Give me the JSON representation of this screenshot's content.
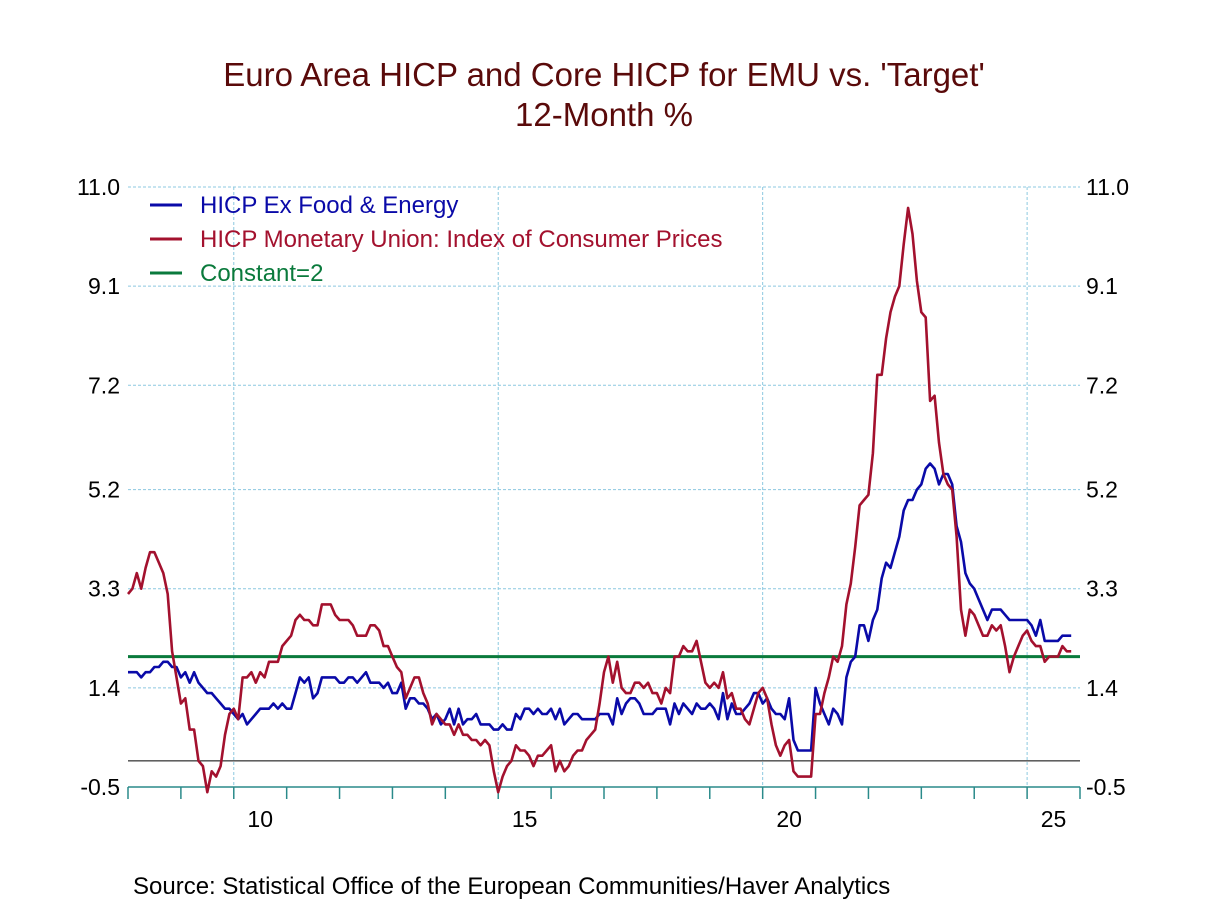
{
  "chart_data": {
    "type": "line",
    "title": "Euro Area HICP and Core HICP for EMU vs. 'Target'",
    "subtitle": "12-Month %",
    "source": "Source:  Statistical Office of the European Communities/Haver Analytics",
    "xlabel": "",
    "ylabel": "",
    "x_start": "2008-01",
    "frequency": "monthly",
    "xlim": [
      2008,
      2026
    ],
    "x_tick_labels": [
      "10",
      "15",
      "20",
      "25"
    ],
    "x_tick_years": [
      2010,
      2015,
      2020,
      2025
    ],
    "ylim": [
      -0.5,
      11.0
    ],
    "y_ticks": [
      11.0,
      9.1,
      7.2,
      5.2,
      3.3,
      1.4,
      -0.5
    ],
    "y_tick_labels": [
      "11.0",
      "9.1",
      "7.2",
      "5.2",
      "3.3",
      "1.4",
      "-0.5"
    ],
    "grid": true,
    "zero_line": true,
    "legend_position": "top-left",
    "series": [
      {
        "name": "HICP Ex Food & Energy",
        "color": "#0a0aa8",
        "values": [
          1.7,
          1.7,
          1.7,
          1.6,
          1.7,
          1.7,
          1.8,
          1.8,
          1.9,
          1.9,
          1.8,
          1.8,
          1.6,
          1.7,
          1.5,
          1.7,
          1.5,
          1.4,
          1.3,
          1.3,
          1.2,
          1.1,
          1.0,
          1.0,
          0.9,
          0.8,
          0.9,
          0.7,
          0.8,
          0.9,
          1.0,
          1.0,
          1.0,
          1.1,
          1.0,
          1.1,
          1.0,
          1.0,
          1.3,
          1.6,
          1.5,
          1.6,
          1.2,
          1.3,
          1.6,
          1.6,
          1.6,
          1.6,
          1.5,
          1.5,
          1.6,
          1.6,
          1.5,
          1.6,
          1.7,
          1.5,
          1.5,
          1.5,
          1.4,
          1.5,
          1.3,
          1.3,
          1.5,
          1.0,
          1.2,
          1.2,
          1.1,
          1.1,
          1.0,
          0.8,
          0.9,
          0.7,
          0.8,
          1.0,
          0.7,
          1.0,
          0.7,
          0.8,
          0.8,
          0.9,
          0.7,
          0.7,
          0.7,
          0.6,
          0.6,
          0.7,
          0.6,
          0.6,
          0.9,
          0.8,
          1.0,
          1.0,
          0.9,
          1.0,
          0.9,
          0.9,
          1.0,
          0.8,
          1.0,
          0.7,
          0.8,
          0.9,
          0.9,
          0.8,
          0.8,
          0.8,
          0.8,
          0.9,
          0.9,
          0.9,
          0.7,
          1.2,
          0.9,
          1.1,
          1.2,
          1.2,
          1.1,
          0.9,
          0.9,
          0.9,
          1.0,
          1.0,
          1.0,
          0.7,
          1.1,
          0.9,
          1.1,
          1.0,
          0.9,
          1.1,
          1.0,
          1.0,
          1.1,
          1.0,
          0.8,
          1.3,
          0.8,
          1.1,
          0.9,
          0.9,
          1.0,
          1.1,
          1.3,
          1.3,
          1.1,
          1.2,
          1.0,
          0.9,
          0.9,
          0.8,
          1.2,
          0.4,
          0.2,
          0.2,
          0.2,
          0.2,
          1.4,
          1.1,
          0.9,
          0.7,
          1.0,
          0.9,
          0.7,
          1.6,
          1.9,
          2.0,
          2.6,
          2.6,
          2.3,
          2.7,
          2.9,
          3.5,
          3.8,
          3.7,
          4.0,
          4.3,
          4.8,
          5.0,
          5.0,
          5.2,
          5.3,
          5.6,
          5.7,
          5.6,
          5.3,
          5.5,
          5.5,
          5.3,
          4.5,
          4.2,
          3.6,
          3.4,
          3.3,
          3.1,
          2.9,
          2.7,
          2.9,
          2.9,
          2.9,
          2.8,
          2.7,
          2.7,
          2.7,
          2.7,
          2.7,
          2.6,
          2.4,
          2.7,
          2.3,
          2.3,
          2.3,
          2.3,
          2.4,
          2.4,
          2.4
        ]
      },
      {
        "name": "HICP Monetary Union: Index of Consumer Prices",
        "color": "#a3112e",
        "values": [
          3.2,
          3.3,
          3.6,
          3.3,
          3.7,
          4.0,
          4.0,
          3.8,
          3.6,
          3.2,
          2.1,
          1.6,
          1.1,
          1.2,
          0.6,
          0.6,
          0.0,
          -0.1,
          -0.6,
          -0.2,
          -0.3,
          -0.1,
          0.5,
          0.9,
          1.0,
          0.8,
          1.6,
          1.6,
          1.7,
          1.5,
          1.7,
          1.6,
          1.9,
          1.9,
          1.9,
          2.2,
          2.3,
          2.4,
          2.7,
          2.8,
          2.7,
          2.7,
          2.6,
          2.6,
          3.0,
          3.0,
          3.0,
          2.8,
          2.7,
          2.7,
          2.7,
          2.6,
          2.4,
          2.4,
          2.4,
          2.6,
          2.6,
          2.5,
          2.2,
          2.2,
          2.0,
          1.8,
          1.7,
          1.2,
          1.4,
          1.6,
          1.6,
          1.3,
          1.1,
          0.7,
          0.9,
          0.8,
          0.7,
          0.7,
          0.5,
          0.7,
          0.5,
          0.5,
          0.4,
          0.4,
          0.3,
          0.4,
          0.3,
          -0.2,
          -0.6,
          -0.3,
          -0.1,
          0.0,
          0.3,
          0.2,
          0.2,
          0.1,
          -0.1,
          0.1,
          0.1,
          0.2,
          0.3,
          -0.2,
          0.0,
          -0.2,
          -0.1,
          0.1,
          0.2,
          0.2,
          0.4,
          0.5,
          0.6,
          1.1,
          1.7,
          2.0,
          1.5,
          1.9,
          1.4,
          1.3,
          1.3,
          1.5,
          1.5,
          1.4,
          1.5,
          1.3,
          1.3,
          1.1,
          1.4,
          1.3,
          2.0,
          2.0,
          2.2,
          2.1,
          2.1,
          2.3,
          1.9,
          1.5,
          1.4,
          1.5,
          1.4,
          1.7,
          1.2,
          1.3,
          1.0,
          1.0,
          0.8,
          0.7,
          1.0,
          1.3,
          1.4,
          1.2,
          0.7,
          0.3,
          0.1,
          0.3,
          0.4,
          -0.2,
          -0.3,
          -0.3,
          -0.3,
          -0.3,
          0.9,
          0.9,
          1.3,
          1.6,
          2.0,
          1.9,
          2.2,
          3.0,
          3.4,
          4.1,
          4.9,
          5.0,
          5.1,
          5.9,
          7.4,
          7.4,
          8.1,
          8.6,
          8.9,
          9.1,
          9.9,
          10.6,
          10.1,
          9.2,
          8.6,
          8.5,
          6.9,
          7.0,
          6.1,
          5.5,
          5.3,
          5.2,
          4.3,
          2.9,
          2.4,
          2.9,
          2.8,
          2.6,
          2.4,
          2.4,
          2.6,
          2.5,
          2.6,
          2.2,
          1.7,
          2.0,
          2.2,
          2.4,
          2.5,
          2.3,
          2.2,
          2.2,
          1.9,
          2.0,
          2.0,
          2.0,
          2.2,
          2.1,
          2.1
        ]
      },
      {
        "name": "Constant=2",
        "color": "#0a7a3c",
        "constant": 2
      }
    ]
  }
}
